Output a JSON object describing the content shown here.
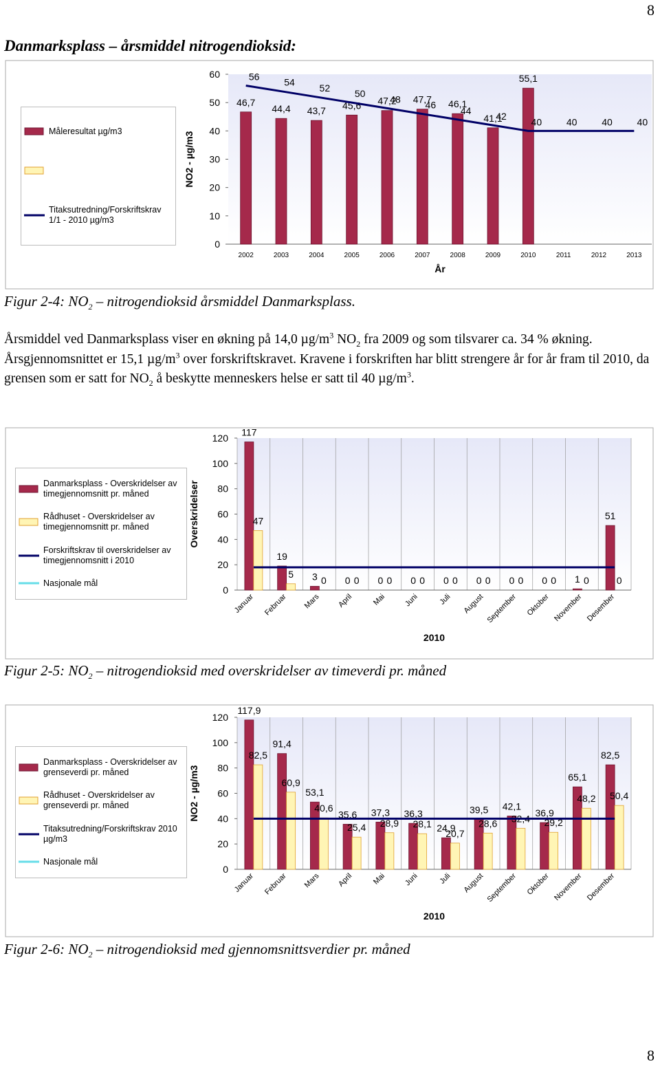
{
  "page_number": "8",
  "heading": "Danmarksplass – årsmiddel nitrogendioksid:",
  "captions": [
    [
      {
        "text": "Figur 2-4: NO"
      },
      {
        "text": "2",
        "style": "sub"
      },
      {
        "text": " – nitrogendioksid årsmiddel Danmarksplass."
      }
    ],
    [
      {
        "text": "Figur 2-5: NO"
      },
      {
        "text": "2",
        "style": "sub"
      },
      {
        "text": " – nitrogendioksid med overskridelser av timeverdi pr. måned"
      }
    ],
    [
      {
        "text": "Figur 2-6: NO"
      },
      {
        "text": "2",
        "style": "sub"
      },
      {
        "text": " – nitrogendioksid med gjennomsnittsverdier pr. måned"
      }
    ]
  ],
  "paragraph": [
    {
      "text": "Årsmiddel ved Danmarksplass viser en økning på 14,0 µg/m"
    },
    {
      "text": "3",
      "style": "sup"
    },
    {
      "text": " NO"
    },
    {
      "text": "2",
      "style": "sub"
    },
    {
      "text": " fra 2009 og som tilsvarer ca. 34 % økning. Årsgjennomsnittet er 15,1 µg/m"
    },
    {
      "text": "3",
      "style": "sup"
    },
    {
      "text": " over forskriftskravet. Kravene i forskriften har blitt strengere år for år fram til 2010, da grensen som er satt for NO"
    },
    {
      "text": "2",
      "style": "sub"
    },
    {
      "text": " å beskytte menneskers helse er satt til 40 µg/m"
    },
    {
      "text": "3",
      "style": "sup"
    },
    {
      "text": "."
    }
  ],
  "chart_data": [
    {
      "type": "bar",
      "y_label": "NO2 - µg/m3",
      "x_label": "År",
      "grid": false,
      "categories": [
        "2002",
        "2003",
        "2004",
        "2005",
        "2006",
        "2007",
        "2008",
        "2009",
        "2010",
        "2011",
        "2012",
        "2013"
      ],
      "ylim": [
        0,
        60
      ],
      "yticks": [
        0,
        10,
        20,
        30,
        40,
        50,
        60
      ],
      "series": [
        {
          "type": "bar",
          "name": "Måleresultat µg/m3",
          "color": "#a5294b",
          "edge_color": "#6e1530",
          "data_labels": true,
          "values": [
            46.7,
            44.4,
            43.7,
            45.6,
            47.2,
            47.7,
            46.1,
            41.1,
            55.1,
            null,
            null,
            null
          ],
          "value_labels": [
            "46,7",
            "44,4",
            "43,7",
            "45,6",
            "47,2",
            "47,7",
            "46,1",
            "41,1",
            "55,1",
            null,
            null,
            null
          ]
        },
        {
          "type": "bar",
          "color": "#fff5b5",
          "edge_color": "#e0a030",
          "data_labels": true,
          "values": [
            null,
            null,
            null,
            null,
            null,
            null,
            null,
            null,
            null,
            null,
            null,
            null
          ]
        },
        {
          "type": "line",
          "name": "Titaksutredning/Forskriftskrav 1/1 - 2010 µg/m3",
          "color": "#000066",
          "data_labels": true,
          "values": [
            56,
            54,
            52,
            50,
            48,
            46,
            44,
            42,
            40,
            40,
            40,
            40
          ]
        }
      ]
    },
    {
      "type": "bar",
      "y_label": "Overskridelser",
      "x_label": "2010",
      "grid": "x",
      "categories": [
        "Januar",
        "Februar",
        "Mars",
        "April",
        "Mai",
        "Juni",
        "Juli",
        "August",
        "September",
        "Oktober",
        "November",
        "Desember"
      ],
      "ylim": [
        0,
        120
      ],
      "yticks": [
        0,
        20,
        40,
        60,
        80,
        100,
        120
      ],
      "series": [
        {
          "type": "bar",
          "name": "Danmarksplass - Overskridelser av timegjennomsnitt pr. måned",
          "color": "#a5294b",
          "edge_color": "#6e1530",
          "data_labels": true,
          "values": [
            117,
            19,
            3,
            0,
            0,
            0,
            0,
            0,
            0,
            0,
            1,
            51
          ]
        },
        {
          "type": "bar",
          "name": "Rådhuset - Overskridelser av timegjennomsnitt pr. måned",
          "color": "#fff5b5",
          "edge_color": "#e0a030",
          "data_labels": true,
          "values": [
            47,
            5,
            0,
            0,
            0,
            0,
            0,
            0,
            0,
            0,
            0,
            0
          ]
        },
        {
          "type": "line",
          "name": "Forskriftskrav til overskridelser av timegjennomsnitt i 2010",
          "color": "#000066",
          "data_labels": false,
          "values": [
            18,
            18,
            18,
            18,
            18,
            18,
            18,
            18,
            18,
            18,
            18,
            18
          ]
        },
        {
          "type": "line",
          "name": "Nasjonale mål",
          "color": "#66dde8",
          "data_labels": false,
          "values": [
            null,
            null,
            null,
            null,
            null,
            null,
            null,
            null,
            null,
            null,
            null,
            null
          ]
        }
      ]
    },
    {
      "type": "bar",
      "y_label": "NO2 - µg/m3",
      "x_label": "2010",
      "grid": "x",
      "categories": [
        "Januar",
        "Februar",
        "Mars",
        "April",
        "Mai",
        "Juni",
        "Juli",
        "August",
        "September",
        "Oktober",
        "November",
        "Desember"
      ],
      "ylim": [
        0,
        120
      ],
      "yticks": [
        0,
        20,
        40,
        60,
        80,
        100,
        120
      ],
      "series": [
        {
          "type": "bar",
          "name": "Danmarksplass - Overskridelser av grenseverdi pr. måned",
          "color": "#a5294b",
          "edge_color": "#6e1530",
          "data_labels": true,
          "values": [
            117.9,
            91.4,
            53.1,
            35.6,
            37.3,
            36.3,
            24.9,
            39.5,
            42.1,
            36.9,
            65.1,
            82.5
          ],
          "value_labels": [
            "117,9",
            "91,4",
            "53,1",
            "35,6",
            "37,3",
            "36,3",
            "24,9",
            "39,5",
            "42,1",
            "36,9",
            "65,1",
            "82,5"
          ]
        },
        {
          "type": "bar",
          "name": "Rådhuset - Overskridelser av grenseverdi pr. måned",
          "color": "#fff5b5",
          "edge_color": "#e0a030",
          "data_labels": true,
          "values": [
            82.5,
            60.9,
            40.6,
            25.4,
            28.9,
            28.1,
            20.7,
            28.6,
            32.4,
            29.2,
            48.2,
            50.4
          ],
          "value_labels": [
            "82,5",
            "60,9",
            "40,6",
            "25,4",
            "28,9",
            "28,1",
            "20,7",
            "28,6",
            "32,4",
            "29,2",
            "48,2",
            "50,4"
          ]
        },
        {
          "type": "line",
          "name": "Titaksutredning/Forskriftskrav 2010 µg/m3",
          "color": "#000066",
          "data_labels": false,
          "values": [
            40,
            40,
            40,
            40,
            40,
            40,
            40,
            40,
            40,
            40,
            40,
            40
          ]
        },
        {
          "type": "line",
          "name": "Nasjonale mål",
          "color": "#66dde8",
          "data_labels": false,
          "values": [
            null,
            null,
            null,
            null,
            null,
            null,
            null,
            null,
            null,
            null,
            null,
            null
          ]
        }
      ]
    }
  ]
}
